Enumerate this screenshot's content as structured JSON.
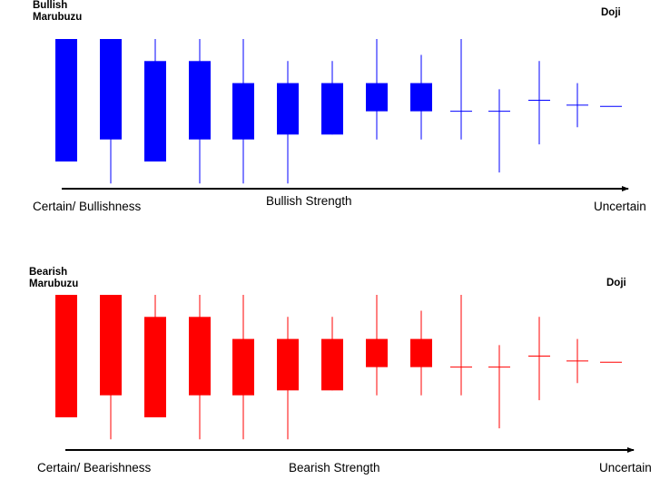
{
  "panels": [
    {
      "id": "bullish",
      "color": "#0000ff",
      "left_title": [
        "Bullish",
        "Marubuzu"
      ],
      "right_title": "Doji",
      "axis_left": "Certain/ Bullishness",
      "axis_center": "Bullish Strength",
      "axis_right": "Uncertain"
    },
    {
      "id": "bearish",
      "color": "#ff0000",
      "left_title": [
        "Bearish",
        "Marubuzu"
      ],
      "right_title": "Doji",
      "axis_left": "Certain/ Bearishness",
      "axis_center": "Bearish Strength",
      "axis_right": "Uncertain"
    }
  ],
  "chart_data": {
    "type": "candlestick-progression",
    "note_scale": "relative price units, 0 = bottom of Marubozu, 100 = top",
    "candles": [
      {
        "low": 0,
        "body_low": 0,
        "body_high": 100,
        "high": 100
      },
      {
        "low": -18,
        "body_low": 18,
        "body_high": 100,
        "high": 100
      },
      {
        "low": 0,
        "body_low": 0,
        "body_high": 82,
        "high": 100
      },
      {
        "low": -18,
        "body_low": 18,
        "body_high": 82,
        "high": 100
      },
      {
        "low": -18,
        "body_low": 18,
        "body_high": 64,
        "high": 100
      },
      {
        "low": -18,
        "body_low": 22,
        "body_high": 64,
        "high": 82
      },
      {
        "low": 22,
        "body_low": 22,
        "body_high": 64,
        "high": 82
      },
      {
        "low": 18,
        "body_low": 41,
        "body_high": 64,
        "high": 100
      },
      {
        "low": 18,
        "body_low": 41,
        "body_high": 64,
        "high": 87
      },
      {
        "low": 18,
        "body_low": 41,
        "body_high": 41,
        "high": 100
      },
      {
        "low": -9,
        "body_low": 41,
        "body_high": 41,
        "high": 59
      },
      {
        "low": 14,
        "body_low": 50,
        "body_high": 50,
        "high": 82
      },
      {
        "low": 28,
        "body_low": 46,
        "body_high": 46,
        "high": 64
      },
      {
        "low": 45,
        "body_low": 45,
        "body_high": 45,
        "high": 45
      }
    ]
  }
}
